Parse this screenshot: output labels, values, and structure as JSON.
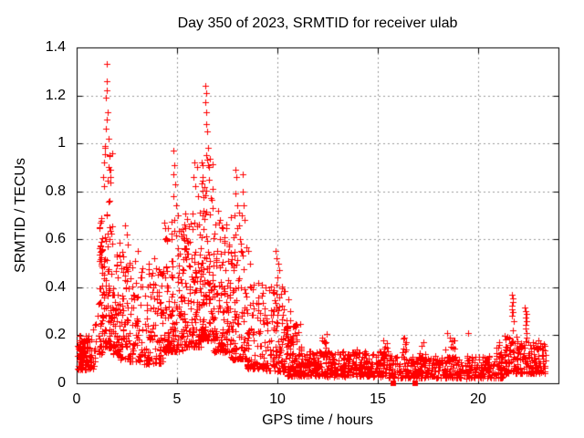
{
  "chart_data": {
    "type": "scatter",
    "title": "Day 350 of 2023, SRMTID for receiver ulab",
    "xlabel": "GPS time / hours",
    "ylabel": "SRMTID / TECUs",
    "xlim": [
      0,
      24
    ],
    "ylim": [
      0,
      1.4
    ],
    "xticks": {
      "values": [
        0,
        5,
        10,
        15,
        20
      ],
      "labels": [
        "0",
        "5",
        "10",
        "15",
        "20"
      ]
    },
    "yticks": {
      "values": [
        0,
        0.2,
        0.4,
        0.6,
        0.8,
        1.0,
        1.2,
        1.4
      ],
      "labels": [
        "0",
        "0.2",
        "0.4",
        "0.6",
        "0.8",
        "1",
        "1.2",
        "1.4"
      ]
    },
    "grid": "dotted-gray-at-major-ticks",
    "legend": "none",
    "series": [
      {
        "name": "srmtid",
        "marker": "plus",
        "color": "#ff0000",
        "peak_points": [
          [
            1.48,
            1.33
          ],
          [
            1.5,
            1.26
          ],
          [
            1.51,
            1.22
          ],
          [
            1.47,
            1.19
          ],
          [
            1.53,
            1.13
          ],
          [
            1.49,
            1.1
          ],
          [
            1.44,
            1.06
          ],
          [
            1.58,
            1.02
          ],
          [
            1.4,
            0.98
          ],
          [
            1.62,
            0.95
          ],
          [
            1.35,
            0.92
          ],
          [
            1.68,
            0.89
          ],
          [
            1.3,
            0.86
          ],
          [
            2.42,
            0.66
          ],
          [
            2.48,
            0.62
          ],
          [
            2.55,
            0.58
          ],
          [
            3.05,
            0.55
          ],
          [
            3.6,
            0.5
          ],
          [
            3.85,
            0.52
          ],
          [
            4.83,
            0.97
          ],
          [
            4.86,
            0.91
          ],
          [
            4.84,
            0.87
          ],
          [
            4.89,
            0.83
          ],
          [
            4.8,
            0.78
          ],
          [
            4.95,
            0.74
          ],
          [
            5.05,
            0.7
          ],
          [
            5.88,
            0.92
          ],
          [
            5.98,
            0.9
          ],
          [
            5.84,
            0.86
          ],
          [
            5.93,
            0.82
          ],
          [
            6.05,
            0.78
          ],
          [
            6.42,
            1.24
          ],
          [
            6.44,
            1.21
          ],
          [
            6.43,
            1.17
          ],
          [
            6.46,
            1.13
          ],
          [
            6.44,
            1.08
          ],
          [
            6.49,
            1.05
          ],
          [
            6.53,
            0.98
          ],
          [
            6.47,
            0.95
          ],
          [
            6.56,
            0.91
          ],
          [
            7.05,
            0.72
          ],
          [
            7.15,
            0.68
          ],
          [
            7.93,
            0.89
          ],
          [
            7.96,
            0.86
          ],
          [
            7.9,
            0.79
          ],
          [
            8.0,
            0.74
          ],
          [
            7.85,
            0.7
          ],
          [
            8.29,
            0.87
          ],
          [
            8.27,
            0.8
          ],
          [
            8.32,
            0.74
          ],
          [
            8.35,
            0.68
          ],
          [
            8.55,
            0.55
          ],
          [
            8.62,
            0.5
          ],
          [
            9.9,
            0.55
          ],
          [
            9.94,
            0.52
          ],
          [
            10.04,
            0.5
          ],
          [
            10.09,
            0.47
          ],
          [
            10.01,
            0.44
          ],
          [
            9.97,
            0.41
          ],
          [
            10.55,
            0.35
          ],
          [
            10.62,
            0.3
          ],
          [
            16.3,
            0.19
          ],
          [
            17.25,
            0.17
          ],
          [
            18.45,
            0.21
          ],
          [
            18.6,
            0.19
          ],
          [
            19.4,
            0.02
          ],
          [
            19.52,
            0.21
          ],
          [
            21.05,
            0.17
          ],
          [
            21.68,
            0.37
          ],
          [
            21.71,
            0.355
          ],
          [
            21.74,
            0.34
          ],
          [
            21.7,
            0.325
          ],
          [
            21.66,
            0.31
          ],
          [
            21.72,
            0.295
          ],
          [
            21.69,
            0.28
          ],
          [
            21.76,
            0.26
          ],
          [
            21.73,
            0.22
          ],
          [
            22.34,
            0.315
          ],
          [
            22.37,
            0.3
          ],
          [
            22.4,
            0.29
          ],
          [
            22.35,
            0.275
          ],
          [
            22.41,
            0.26
          ],
          [
            22.38,
            0.245
          ],
          [
            22.36,
            0.23
          ],
          [
            22.43,
            0.21
          ],
          [
            22.39,
            0.19
          ]
        ],
        "segment_format": [
          "x_min",
          "x_max",
          "count",
          "y_min",
          "y_max",
          "skew_toward_y_min"
        ],
        "density_segments": [
          [
            0.03,
            0.75,
            110,
            0.055,
            0.2,
            1.2
          ],
          [
            0.75,
            1.1,
            14,
            0.06,
            0.4,
            1.8
          ],
          [
            1.1,
            1.35,
            60,
            0.12,
            0.72,
            2.2
          ],
          [
            1.35,
            1.8,
            95,
            0.15,
            1.0,
            2.5
          ],
          [
            1.8,
            2.15,
            60,
            0.12,
            0.65,
            2.2
          ],
          [
            2.15,
            2.45,
            40,
            0.1,
            0.55,
            2.0
          ],
          [
            2.45,
            3.3,
            90,
            0.09,
            0.52,
            2.0
          ],
          [
            3.3,
            4.3,
            110,
            0.08,
            0.48,
            1.9
          ],
          [
            4.3,
            5.3,
            150,
            0.13,
            0.68,
            1.9
          ],
          [
            5.3,
            6.2,
            140,
            0.15,
            0.72,
            1.8
          ],
          [
            6.2,
            6.8,
            110,
            0.18,
            0.95,
            2.0
          ],
          [
            6.8,
            7.6,
            120,
            0.13,
            0.68,
            1.9
          ],
          [
            7.6,
            8.45,
            110,
            0.1,
            0.72,
            2.2
          ],
          [
            8.45,
            9.45,
            100,
            0.06,
            0.42,
            2.0
          ],
          [
            9.45,
            10.45,
            110,
            0.05,
            0.42,
            2.0
          ],
          [
            10.45,
            11.2,
            120,
            0.03,
            0.28,
            2.2
          ],
          [
            11.2,
            15.5,
            380,
            0.028,
            0.135,
            1.5
          ],
          [
            12.2,
            12.5,
            15,
            0.11,
            0.21,
            1.3
          ],
          [
            13.9,
            14.1,
            6,
            0.1,
            0.16,
            1.3
          ],
          [
            15.25,
            15.45,
            8,
            0.11,
            0.18,
            1.2
          ],
          [
            15.5,
            21.3,
            430,
            0.022,
            0.115,
            1.4
          ],
          [
            16.2,
            16.4,
            8,
            0.1,
            0.19,
            1.2
          ],
          [
            17.1,
            17.35,
            8,
            0.09,
            0.16,
            1.2
          ],
          [
            18.3,
            18.9,
            12,
            0.09,
            0.18,
            1.2
          ],
          [
            20.9,
            21.2,
            8,
            0.09,
            0.16,
            1.2
          ],
          [
            21.3,
            22.2,
            90,
            0.04,
            0.2,
            1.6
          ],
          [
            22.2,
            23.35,
            110,
            0.04,
            0.18,
            1.6
          ]
        ]
      },
      {
        "name": "flag-markers",
        "marker": "filled-square",
        "color": "#ff0000",
        "points": [
          [
            15.75,
            0
          ],
          [
            16.85,
            0
          ]
        ]
      }
    ]
  },
  "colors": {
    "marker": "#ff0000",
    "grid": "#9a9a9a",
    "axis": "#000000",
    "background": "#ffffff",
    "text": "#000000"
  }
}
